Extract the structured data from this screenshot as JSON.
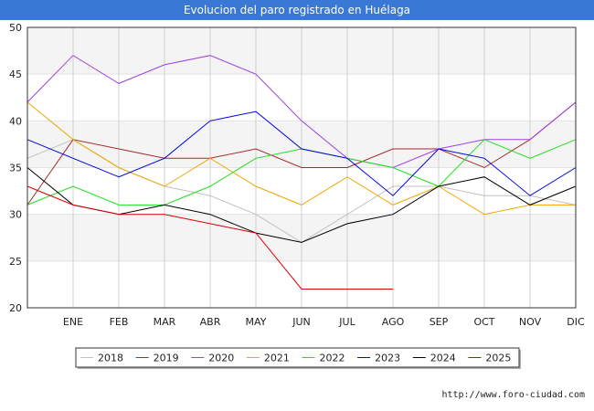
{
  "chart_data": {
    "type": "line",
    "title": "Evolucion del paro registrado en Huélaga",
    "categories": [
      "",
      "ENE",
      "FEB",
      "MAR",
      "ABR",
      "MAY",
      "JUN",
      "JUL",
      "AGO",
      "SEP",
      "OCT",
      "NOV",
      "DIC"
    ],
    "ylim": [
      20,
      50
    ],
    "yticks": [
      20,
      25,
      30,
      35,
      40,
      45,
      50
    ],
    "grid": true,
    "legend_position": "bottom",
    "series": [
      {
        "name": "2018",
        "color": "#c0c0c0",
        "values": [
          36,
          38,
          35,
          33,
          32,
          30,
          27,
          30,
          33,
          33,
          32,
          32,
          31
        ]
      },
      {
        "name": "2019",
        "color": "#a52a2a",
        "values": [
          31,
          38,
          37,
          36,
          36,
          37,
          35,
          35,
          37,
          37,
          35,
          38,
          42
        ]
      },
      {
        "name": "2020",
        "color": "#a040e0",
        "values": [
          42,
          47,
          44,
          46,
          47,
          45,
          40,
          36,
          35,
          37,
          38,
          38,
          42
        ]
      },
      {
        "name": "2021",
        "color": "#f0a800",
        "values": [
          42,
          38,
          35,
          33,
          36,
          33,
          31,
          34,
          31,
          33,
          30,
          31,
          31
        ]
      },
      {
        "name": "2022",
        "color": "#20e020",
        "values": [
          31,
          33,
          31,
          31,
          33,
          36,
          37,
          36,
          35,
          33,
          38,
          36,
          38
        ]
      },
      {
        "name": "2023",
        "color": "#0000e0",
        "values": [
          38,
          36,
          34,
          36,
          40,
          41,
          37,
          36,
          32,
          37,
          36,
          32,
          35
        ]
      },
      {
        "name": "2024",
        "color": "#000000",
        "values": [
          35,
          31,
          30,
          31,
          30,
          28,
          27,
          29,
          30,
          33,
          34,
          31,
          33
        ]
      },
      {
        "name": "2025",
        "color": "#e00000",
        "values": [
          33,
          31,
          30,
          30,
          29,
          28,
          22,
          22,
          22,
          null,
          null,
          null,
          null
        ]
      }
    ]
  },
  "footer": {
    "credit": "http://www.foro-ciudad.com"
  }
}
